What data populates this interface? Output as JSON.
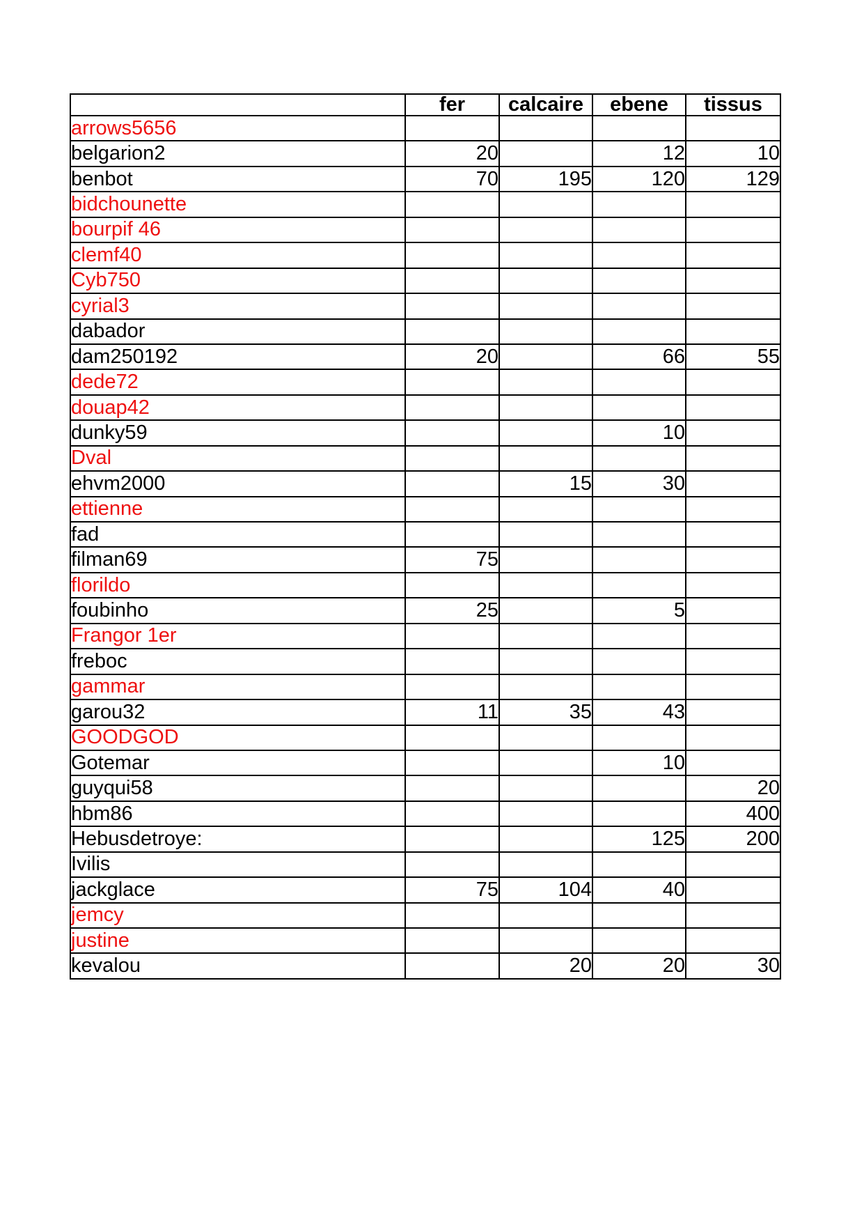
{
  "colors": {
    "red_text": "#ee1111",
    "teal_highlight": "#46a9c6",
    "green_highlight": "#c5d79f",
    "border": "#000000",
    "background": "#ffffff"
  },
  "table": {
    "columns": [
      "",
      "fer",
      "calcaire",
      "ebene",
      "tissus"
    ],
    "rows": [
      {
        "name": "arrows5656",
        "text_color": "red",
        "highlight": "none",
        "values": [
          "",
          "",
          "",
          ""
        ]
      },
      {
        "name": "belgarion2",
        "text_color": "black",
        "highlight": "none",
        "values": [
          "20",
          "",
          "12",
          "10"
        ]
      },
      {
        "name": "benbot",
        "text_color": "black",
        "highlight": "none",
        "values": [
          "70",
          "195",
          "120",
          "129"
        ]
      },
      {
        "name": "bidchounette",
        "text_color": "red",
        "highlight": "none",
        "values": [
          "",
          "",
          "",
          ""
        ]
      },
      {
        "name": "bourpif 46",
        "text_color": "red",
        "highlight": "none",
        "values": [
          "",
          "",
          "",
          ""
        ]
      },
      {
        "name": "clemf40",
        "text_color": "red",
        "highlight": "none",
        "values": [
          "",
          "",
          "",
          ""
        ]
      },
      {
        "name": "Cyb750",
        "text_color": "red",
        "highlight": "none",
        "values": [
          "",
          "",
          "",
          ""
        ]
      },
      {
        "name": "cyrial3",
        "text_color": "red",
        "highlight": "none",
        "values": [
          "",
          "",
          "",
          ""
        ]
      },
      {
        "name": "dabador",
        "text_color": "black",
        "highlight": "none",
        "values": [
          "",
          "",
          "",
          ""
        ]
      },
      {
        "name": "dam250192",
        "text_color": "black",
        "highlight": "none",
        "values": [
          "20",
          "",
          "66",
          "55"
        ]
      },
      {
        "name": "dede72",
        "text_color": "red",
        "highlight": "none",
        "values": [
          "",
          "",
          "",
          ""
        ]
      },
      {
        "name": "douap42",
        "text_color": "red",
        "highlight": "none",
        "values": [
          "",
          "",
          "",
          ""
        ]
      },
      {
        "name": "dunky59",
        "text_color": "black",
        "highlight": "none",
        "values": [
          "",
          "",
          "10",
          ""
        ]
      },
      {
        "name": "Dval",
        "text_color": "red",
        "highlight": "none",
        "values": [
          "",
          "",
          "",
          ""
        ]
      },
      {
        "name": "ehvm2000",
        "text_color": "black",
        "highlight": "none",
        "values": [
          "",
          "15",
          "30",
          ""
        ]
      },
      {
        "name": "ettienne",
        "text_color": "red",
        "highlight": "none",
        "values": [
          "",
          "",
          "",
          ""
        ]
      },
      {
        "name": "fad",
        "text_color": "black",
        "highlight": "teal",
        "values": [
          "",
          "",
          "",
          ""
        ]
      },
      {
        "name": "filman69",
        "text_color": "black",
        "highlight": "none",
        "values": [
          "75",
          "",
          "",
          ""
        ]
      },
      {
        "name": "florildo",
        "text_color": "red",
        "highlight": "none",
        "values": [
          "",
          "",
          "",
          ""
        ]
      },
      {
        "name": "foubinho",
        "text_color": "black",
        "highlight": "none",
        "values": [
          "25",
          "",
          "5",
          ""
        ]
      },
      {
        "name": "Frangor 1er",
        "text_color": "red",
        "highlight": "none",
        "values": [
          "",
          "",
          "",
          ""
        ]
      },
      {
        "name": "freboc",
        "text_color": "black",
        "highlight": "teal",
        "values": [
          "",
          "",
          "",
          ""
        ]
      },
      {
        "name": "gammar",
        "text_color": "red",
        "highlight": "none",
        "values": [
          "",
          "",
          "",
          ""
        ]
      },
      {
        "name": "garou32",
        "text_color": "black",
        "highlight": "none",
        "values": [
          "11",
          "35",
          "43",
          ""
        ]
      },
      {
        "name": "GOODGOD",
        "text_color": "red",
        "highlight": "none",
        "values": [
          "",
          "",
          "",
          ""
        ]
      },
      {
        "name": "Gotemar",
        "text_color": "black",
        "highlight": "none",
        "values": [
          "",
          "",
          "10",
          ""
        ]
      },
      {
        "name": "guyqui58",
        "text_color": "black",
        "highlight": "green",
        "values": [
          "",
          "",
          "",
          "20"
        ]
      },
      {
        "name": "hbm86",
        "text_color": "black",
        "highlight": "none",
        "values": [
          "",
          "",
          "",
          "400"
        ]
      },
      {
        "name": "Hebusdetroye:",
        "text_color": "black",
        "highlight": "green",
        "values": [
          "",
          "",
          "125",
          "200"
        ]
      },
      {
        "name": "Ivilis",
        "text_color": "black",
        "highlight": "none",
        "values": [
          "",
          "",
          "",
          ""
        ]
      },
      {
        "name": "jackglace",
        "text_color": "black",
        "highlight": "none",
        "values": [
          "75",
          "104",
          "40",
          ""
        ]
      },
      {
        "name": "jemcy",
        "text_color": "red",
        "highlight": "none",
        "values": [
          "",
          "",
          "",
          ""
        ]
      },
      {
        "name": "justine",
        "text_color": "red",
        "highlight": "none",
        "values": [
          "",
          "",
          "",
          ""
        ]
      },
      {
        "name": "kevalou",
        "text_color": "black",
        "highlight": "none",
        "values": [
          "",
          "20",
          "20",
          "30"
        ]
      }
    ]
  }
}
